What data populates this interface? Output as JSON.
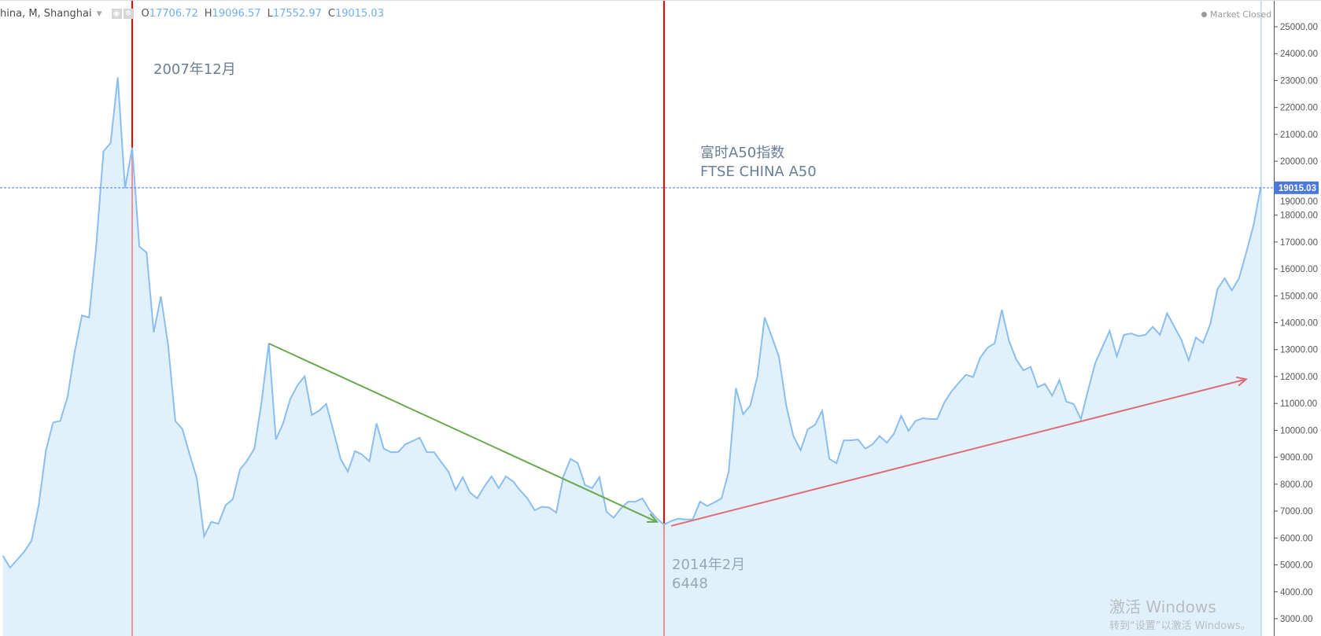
{
  "header": {
    "symbol": "hina, M, Shanghai",
    "open_label": "O",
    "open": "17706.72",
    "high_label": "H",
    "high": "19096.57",
    "low_label": "L",
    "low": "17552.97",
    "close_label": "C",
    "close": "19015.03",
    "icons": [
      "eye-icon",
      "gear-icon"
    ]
  },
  "status": "Market Closed",
  "annotations": {
    "peak_label": "2007年12月",
    "title_cn": "富时A50指数",
    "title_en": "FTSE CHINA A50",
    "low_date": "2014年2月",
    "low_value": "6448"
  },
  "watermark": {
    "line1": "激活 Windows",
    "line2": "转到“设置”以激活 Windows。"
  },
  "chart_data": {
    "type": "area",
    "interval": "monthly",
    "ylim": [
      3000,
      25000
    ],
    "yticks": [
      "25000.00",
      "24000.00",
      "23000.00",
      "22000.00",
      "21000.00",
      "20000.00",
      "19000.00",
      "18000.00",
      "17000.00",
      "16000.00",
      "15000.00",
      "14000.00",
      "13000.00",
      "12000.00",
      "11000.00",
      "10000.00",
      "9000.00",
      "8000.00",
      "7000.00",
      "6000.00",
      "5000.00",
      "4000.00",
      "3000.00"
    ],
    "last_price": 19015.03,
    "last_price_label": "19015.03",
    "colors": {
      "line": "#8bbef0",
      "fill": "#e1f1fb",
      "last_price": "#4a78e0",
      "vline": "#ff0000",
      "down_trend": "#6aa84f",
      "up_trend": "#e06c75"
    },
    "values": [
      5345,
      4900,
      5190,
      5500,
      5900,
      7220,
      9260,
      10290,
      10350,
      11230,
      12920,
      14270,
      14200,
      16860,
      20370,
      20680,
      23120,
      19000,
      20500,
      16830,
      16610,
      13640,
      14980,
      13170,
      10350,
      10040,
      9100,
      8220,
      6060,
      6600,
      6530,
      7220,
      7440,
      8540,
      8880,
      9320,
      11040,
      13230,
      9660,
      10260,
      11170,
      11670,
      12010,
      10570,
      10730,
      10980,
      9980,
      8940,
      8470,
      9230,
      9100,
      8850,
      10260,
      9320,
      9190,
      9190,
      9480,
      9600,
      9730,
      9190,
      9190,
      8820,
      8470,
      7790,
      8260,
      7690,
      7470,
      7910,
      8290,
      7850,
      8290,
      8100,
      7760,
      7470,
      7030,
      7160,
      7130,
      6940,
      8290,
      8940,
      8780,
      7970,
      7850,
      8260,
      6970,
      6750,
      7100,
      7350,
      7350,
      7470,
      7030,
      6720,
      6500,
      6630,
      6720,
      6690,
      6690,
      7350,
      7190,
      7320,
      7470,
      8470,
      11570,
      10600,
      10920,
      12010,
      14200,
      13480,
      12730,
      10920,
      9790,
      9260,
      10040,
      10200,
      10730,
      8940,
      8780,
      9630,
      9630,
      9660,
      9320,
      9480,
      9790,
      9540,
      9880,
      10540,
      9980,
      10350,
      10450,
      10420,
      10420,
      11040,
      11450,
      11760,
      12070,
      11980,
      12700,
      13070,
      13230,
      14480,
      13320,
      12640,
      12230,
      12360,
      11600,
      11730,
      11290,
      11860,
      11070,
      10980,
      10420,
      11500,
      12500,
      13100,
      13700,
      12750,
      13550,
      13600,
      13500,
      13550,
      13850,
      13550,
      14350,
      13850,
      13350,
      12600,
      13450,
      13250,
      13950,
      15250,
      15650,
      15200,
      15650,
      16600,
      17600,
      19015
    ],
    "vertical_markers": [
      {
        "index": 18,
        "label": "2007年12月"
      },
      {
        "index": 92,
        "label": "2014年2月"
      }
    ],
    "trend_lines": [
      {
        "name": "down",
        "from": {
          "index": 37,
          "value": 13230
        },
        "to": {
          "index": 91,
          "value": 6600
        },
        "arrow": true
      },
      {
        "name": "up",
        "from": {
          "index": 93,
          "value": 6450
        },
        "to": {
          "index": 173,
          "value": 11900
        },
        "arrow": true
      }
    ]
  }
}
